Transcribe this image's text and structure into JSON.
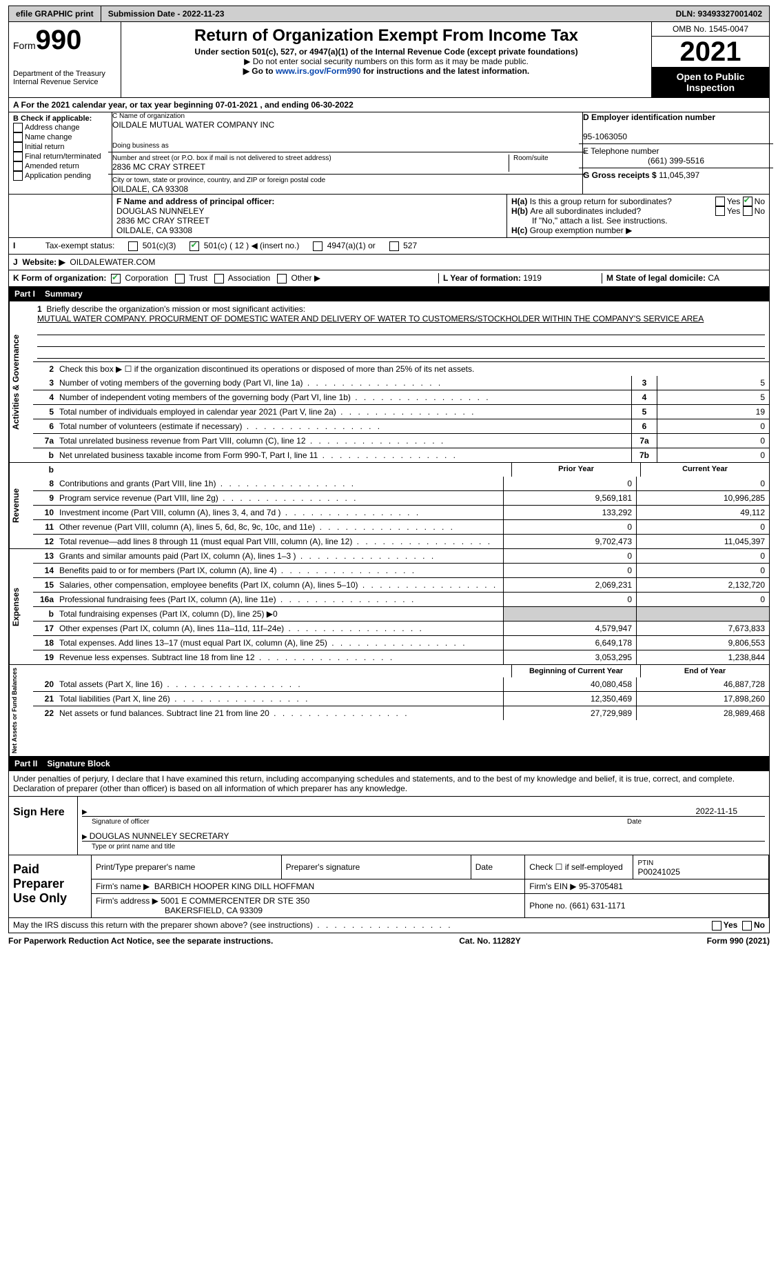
{
  "topbar": {
    "efile": "efile GRAPHIC print",
    "submission": "Submission Date - 2022-11-23",
    "dln": "DLN: 93493327001402"
  },
  "header": {
    "formword": "Form",
    "formno": "990",
    "title": "Return of Organization Exempt From Income Tax",
    "sub1": "Under section 501(c), 527, or 4947(a)(1) of the Internal Revenue Code (except private foundations)",
    "sub2": "▶ Do not enter social security numbers on this form as it may be made public.",
    "sub3pre": "▶ Go to ",
    "sub3link": "www.irs.gov/Form990",
    "sub3post": " for instructions and the latest information.",
    "omb": "OMB No. 1545-0047",
    "year": "2021",
    "open": "Open to Public Inspection",
    "dept": "Department of the Treasury",
    "irs": "Internal Revenue Service"
  },
  "period": "A For the 2021 calendar year, or tax year beginning 07-01-2021    , and ending 06-30-2022",
  "B": {
    "title": "B Check if applicable:",
    "items": [
      "Address change",
      "Name change",
      "Initial return",
      "Final return/terminated",
      "Amended return",
      "Application pending"
    ]
  },
  "C": {
    "nameLabel": "C Name of organization",
    "name": "OILDALE MUTUAL WATER COMPANY INC",
    "dba": "Doing business as",
    "addrLabel": "Number and street (or P.O. box if mail is not delivered to street address)",
    "addr": "2836 MC CRAY STREET",
    "roomLabel": "Room/suite",
    "cityLabel": "City or town, state or province, country, and ZIP or foreign postal code",
    "city": "OILDALE, CA  93308"
  },
  "D": {
    "label": "D Employer identification number",
    "value": "95-1063050"
  },
  "E": {
    "label": "E Telephone number",
    "value": "(661) 399-5516"
  },
  "G": {
    "label": "G Gross receipts $",
    "value": "11,045,397"
  },
  "F": {
    "label": "F  Name and address of principal officer:",
    "name": "DOUGLAS NUNNELEY",
    "addr": "2836 MC CRAY STREET",
    "city": "OILDALE, CA  93308"
  },
  "H": {
    "a": "Is this a group return for subordinates?",
    "b": "Are all subordinates included?",
    "note": "If \"No,\" attach a list. See instructions.",
    "c": "Group exemption number ▶",
    "yes": "Yes",
    "no": "No"
  },
  "I": {
    "label": "Tax-exempt status:",
    "c1": "501(c)(3)",
    "c2": "501(c) ( 12 ) ◀ (insert no.)",
    "c3": "4947(a)(1) or",
    "c4": "527"
  },
  "J": {
    "label": "Website: ▶",
    "value": "OILDALEWATER.COM"
  },
  "K": {
    "label": "K Form of organization:",
    "corp": "Corporation",
    "trust": "Trust",
    "assoc": "Association",
    "other": "Other ▶"
  },
  "L": {
    "label": "L Year of formation:",
    "value": "1919"
  },
  "M": {
    "label": "M State of legal domicile:",
    "value": "CA"
  },
  "part1": "Part I",
  "summary": "Summary",
  "missionLabel": "Briefly describe the organization's mission or most significant activities:",
  "mission": "MUTUAL WATER COMPANY. PROCURMENT OF DOMESTIC WATER AND DELIVERY OF WATER TO CUSTOMERS/STOCKHOLDER WITHIN THE COMPANY'S SERVICE AREA",
  "line2": "Check this box ▶ ☐  if the organization discontinued its operations or disposed of more than 25% of its net assets.",
  "govlines": [
    {
      "n": "3",
      "t": "Number of voting members of the governing body (Part VI, line 1a)",
      "bx": "3",
      "v": "5"
    },
    {
      "n": "4",
      "t": "Number of independent voting members of the governing body (Part VI, line 1b)",
      "bx": "4",
      "v": "5"
    },
    {
      "n": "5",
      "t": "Total number of individuals employed in calendar year 2021 (Part V, line 2a)",
      "bx": "5",
      "v": "19"
    },
    {
      "n": "6",
      "t": "Total number of volunteers (estimate if necessary)",
      "bx": "6",
      "v": "0"
    },
    {
      "n": "7a",
      "t": "Total unrelated business revenue from Part VIII, column (C), line 12",
      "bx": "7a",
      "v": "0"
    },
    {
      "n": "b",
      "t": "Net unrelated business taxable income from Form 990-T, Part I, line 11",
      "bx": "7b",
      "v": "0"
    }
  ],
  "prior": "Prior Year",
  "current": "Current Year",
  "revlines": [
    {
      "n": "8",
      "t": "Contributions and grants (Part VIII, line 1h)",
      "p": "0",
      "c": "0"
    },
    {
      "n": "9",
      "t": "Program service revenue (Part VIII, line 2g)",
      "p": "9,569,181",
      "c": "10,996,285"
    },
    {
      "n": "10",
      "t": "Investment income (Part VIII, column (A), lines 3, 4, and 7d )",
      "p": "133,292",
      "c": "49,112"
    },
    {
      "n": "11",
      "t": "Other revenue (Part VIII, column (A), lines 5, 6d, 8c, 9c, 10c, and 11e)",
      "p": "0",
      "c": "0"
    },
    {
      "n": "12",
      "t": "Total revenue—add lines 8 through 11 (must equal Part VIII, column (A), line 12)",
      "p": "9,702,473",
      "c": "11,045,397"
    }
  ],
  "explines": [
    {
      "n": "13",
      "t": "Grants and similar amounts paid (Part IX, column (A), lines 1–3 )",
      "p": "0",
      "c": "0"
    },
    {
      "n": "14",
      "t": "Benefits paid to or for members (Part IX, column (A), line 4)",
      "p": "0",
      "c": "0"
    },
    {
      "n": "15",
      "t": "Salaries, other compensation, employee benefits (Part IX, column (A), lines 5–10)",
      "p": "2,069,231",
      "c": "2,132,720"
    },
    {
      "n": "16a",
      "t": "Professional fundraising fees (Part IX, column (A), line 11e)",
      "p": "0",
      "c": "0"
    },
    {
      "n": "b",
      "t": "Total fundraising expenses (Part IX, column (D), line 25) ▶0",
      "shade": true
    },
    {
      "n": "17",
      "t": "Other expenses (Part IX, column (A), lines 11a–11d, 11f–24e)",
      "p": "4,579,947",
      "c": "7,673,833"
    },
    {
      "n": "18",
      "t": "Total expenses. Add lines 13–17 (must equal Part IX, column (A), line 25)",
      "p": "6,649,178",
      "c": "9,806,553"
    },
    {
      "n": "19",
      "t": "Revenue less expenses. Subtract line 18 from line 12",
      "p": "3,053,295",
      "c": "1,238,844"
    }
  ],
  "begin": "Beginning of Current Year",
  "end": "End of Year",
  "netlines": [
    {
      "n": "20",
      "t": "Total assets (Part X, line 16)",
      "p": "40,080,458",
      "c": "46,887,728"
    },
    {
      "n": "21",
      "t": "Total liabilities (Part X, line 26)",
      "p": "12,350,469",
      "c": "17,898,260"
    },
    {
      "n": "22",
      "t": "Net assets or fund balances. Subtract line 21 from line 20",
      "p": "27,729,989",
      "c": "28,989,468"
    }
  ],
  "vtabs": {
    "gov": "Activities & Governance",
    "rev": "Revenue",
    "exp": "Expenses",
    "net": "Net Assets or Fund Balances"
  },
  "part2": "Part II",
  "sigblock": "Signature Block",
  "penalties": "Under penalties of perjury, I declare that I have examined this return, including accompanying schedules and statements, and to the best of my knowledge and belief, it is true, correct, and complete. Declaration of preparer (other than officer) is based on all information of which preparer has any knowledge.",
  "signhere": "Sign Here",
  "sigdate": "2022-11-15",
  "sigoff": "Signature of officer",
  "sigdatew": "Date",
  "signame": "DOUGLAS NUNNELEY  SECRETARY",
  "typeprint": "Type or print name and title",
  "paid": "Paid Preparer Use Only",
  "prep": {
    "h1": "Print/Type preparer's name",
    "h2": "Preparer's signature",
    "h3": "Date",
    "h4pre": "Check ☐ if self-employed",
    "h5": "PTIN",
    "ptin": "P00241025",
    "firmname": "Firm's name      ▶",
    "firm": "BARBICH HOOPER KING DILL HOFFMAN",
    "firmein": "Firm's EIN ▶",
    "ein": "95-3705481",
    "firmaddr": "Firm's address ▶",
    "addr1": "5001 E COMMERCENTER DR STE 350",
    "addr2": "BAKERSFIELD, CA  93309",
    "phone": "Phone no.",
    "phoneno": "(661) 631-1171"
  },
  "discuss": "May the IRS discuss this return with the preparer shown above? (see instructions)",
  "foot": {
    "left": "For Paperwork Reduction Act Notice, see the separate instructions.",
    "mid": "Cat. No. 11282Y",
    "right": "Form 990 (2021)"
  }
}
